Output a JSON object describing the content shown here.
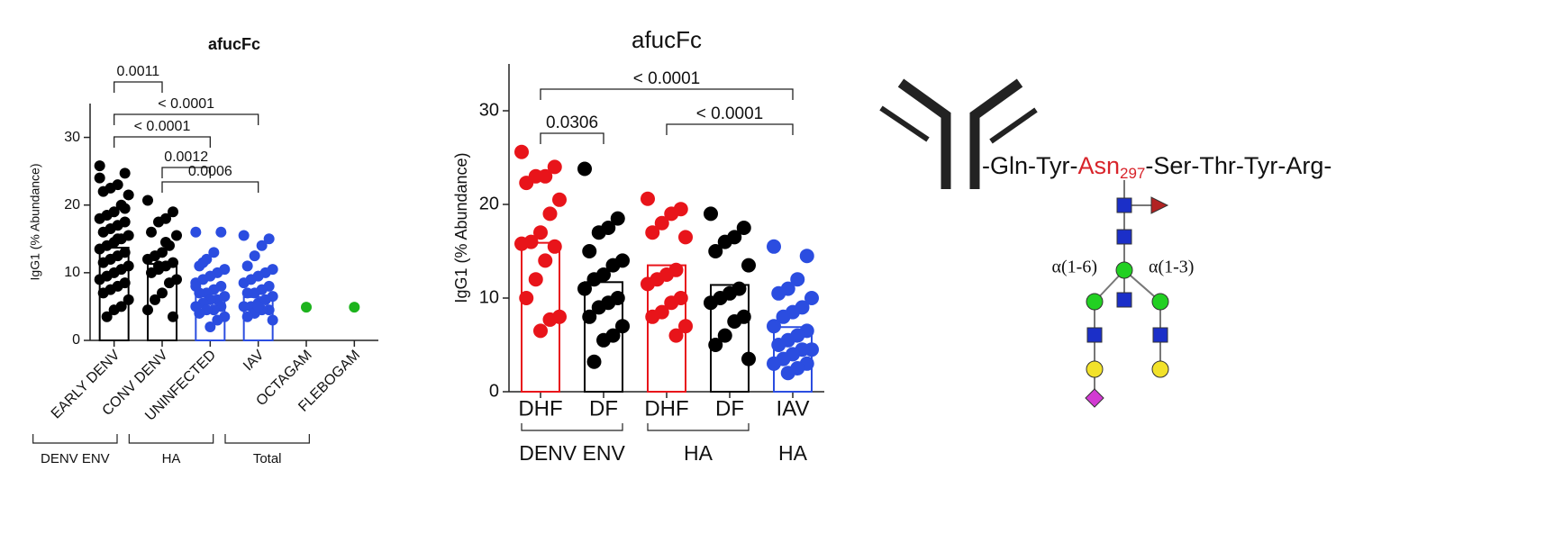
{
  "chart_data": [
    {
      "type": "bar",
      "title": "afucFc",
      "y_label": "IgG1 (% Abundance)",
      "categories": [
        "EARLY  DENV",
        "CONV DENV",
        "UNINFECTED",
        "IAV",
        "OCTAGAM",
        "FLEBOGAM"
      ],
      "values": [
        13.7,
        11.3,
        6.5,
        6.4,
        null,
        null
      ],
      "colors": [
        "#000000",
        "#000000",
        "#2b4de0",
        "#2b4de0",
        "#1db31d",
        "#1db31d"
      ],
      "points": [
        [
          25.8,
          24.7,
          23,
          22.5,
          22,
          21.5,
          20,
          19,
          18.5,
          18,
          17.5,
          17,
          16.5,
          16,
          15.5,
          15,
          14.5,
          14,
          13.5,
          13,
          12.5,
          12,
          11.5,
          11,
          10.5,
          10,
          9.5,
          9,
          8.5,
          8,
          7.5,
          7,
          6,
          5,
          4.5,
          3.5,
          24,
          19.5,
          15,
          12
        ],
        [
          20.7,
          19,
          18,
          17.5,
          16,
          15.5,
          14,
          13,
          12.5,
          12,
          11.5,
          11,
          10.5,
          10,
          9,
          8.5,
          7,
          6,
          4.5,
          3.5,
          14.5,
          11
        ],
        [
          16,
          16,
          13,
          12,
          11,
          10.5,
          10,
          9.5,
          9,
          8.5,
          8,
          7.5,
          7,
          7,
          6.5,
          6,
          6,
          5.5,
          5,
          5,
          4.5,
          4.5,
          4,
          3.5,
          3,
          2,
          11.5,
          8
        ],
        [
          15.5,
          15,
          14,
          12.5,
          11,
          10.5,
          10,
          9.5,
          9,
          8.5,
          8,
          7.5,
          7,
          7,
          6.5,
          6,
          5.5,
          5,
          5,
          4.5,
          4.5,
          4,
          3.5,
          3,
          6,
          5
        ],
        [
          4.9
        ],
        [
          4.9
        ]
      ],
      "ylim": [
        0,
        35
      ],
      "yticks": [
        0,
        10,
        20,
        30
      ],
      "groups": [
        {
          "label": "DENV ENV",
          "from": 0,
          "to": 1
        },
        {
          "label": "HA",
          "from": 2,
          "to": 3
        },
        {
          "label": "Total",
          "from": 4,
          "to": 5
        }
      ],
      "comparisons": [
        {
          "from": 0,
          "to": 1,
          "label": "0.0011"
        },
        {
          "from": 0,
          "to": 3,
          "label": "< 0.0001"
        },
        {
          "from": 0,
          "to": 2,
          "label": "< 0.0001"
        },
        {
          "from": 1,
          "to": 2,
          "label": "0.0012"
        },
        {
          "from": 1,
          "to": 3,
          "label": "0.0006"
        }
      ]
    },
    {
      "type": "bar",
      "title": "afucFc",
      "y_label": "IgG1 (% Abundance)",
      "categories": [
        "DHF",
        "DF",
        "DHF",
        "DF",
        "IAV"
      ],
      "values": [
        15.9,
        11.7,
        13.5,
        11.4,
        6.9
      ],
      "colors": [
        "#e8141a",
        "#000000",
        "#e8141a",
        "#000000",
        "#2b4de0"
      ],
      "points": [
        [
          25.6,
          24,
          23,
          23,
          22.3,
          20.5,
          19,
          17,
          16,
          15.8,
          15.5,
          14,
          12,
          10,
          8,
          7.7,
          6.5
        ],
        [
          23.8,
          18.5,
          17.5,
          17,
          15,
          14,
          13.5,
          12.5,
          12,
          11,
          10,
          9.5,
          9,
          8,
          7,
          6,
          5.5,
          3.2
        ],
        [
          20.6,
          19.5,
          19,
          18,
          17,
          16.5,
          13,
          12.5,
          12,
          11.5,
          10,
          9.5,
          8.5,
          8,
          7,
          6
        ],
        [
          19,
          17.5,
          16.5,
          16,
          15,
          13.5,
          11,
          10.5,
          10,
          9.5,
          8,
          7.5,
          6,
          5,
          3.5
        ],
        [
          15.5,
          14.5,
          12,
          11,
          10.5,
          10,
          9,
          8.5,
          8,
          7,
          6.5,
          6,
          5.5,
          5,
          4.5,
          4.5,
          4,
          3.5,
          3,
          3,
          2.5,
          2
        ]
      ],
      "ylim": [
        0,
        35
      ],
      "yticks": [
        0,
        10,
        20,
        30
      ],
      "groups": [
        {
          "label": "DENV ENV",
          "from": 0,
          "to": 1
        },
        {
          "label": "HA",
          "from": 2,
          "to": 3
        },
        {
          "label": "HA",
          "from": 4,
          "to": 4
        }
      ],
      "comparisons": [
        {
          "from": 0,
          "to": 1,
          "label": "0.0306"
        },
        {
          "from": 0,
          "to": 4,
          "label": "< 0.0001"
        },
        {
          "from": 2,
          "to": 4,
          "label": "< 0.0001"
        }
      ]
    }
  ],
  "diagram": {
    "sequence_left": "-Gln-Tyr-",
    "residue": "Asn",
    "residue_number": "297",
    "sequence_right": "-Ser-Thr-Tyr-Arg-",
    "linkage_left": "α(1-6)",
    "linkage_right": "α(1-3)"
  }
}
